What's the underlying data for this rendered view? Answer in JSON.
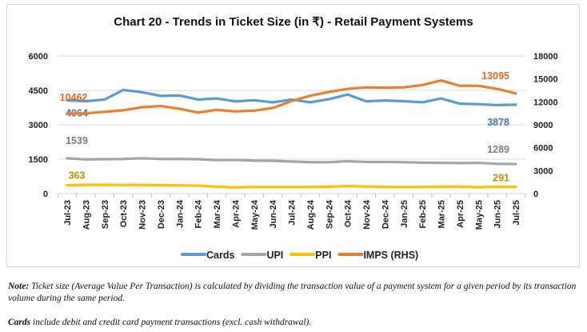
{
  "chart_data": {
    "type": "line",
    "title": "Chart 20 - Trends in Ticket Size (in ₹) - Retail Payment Systems",
    "categories": [
      "Jul-23",
      "Aug-23",
      "Sep-23",
      "Oct-23",
      "Nov-23",
      "Dec-23",
      "Jan-24",
      "Feb-24",
      "Mar-24",
      "Apr-24",
      "May-24",
      "Jun-24",
      "Jul-24",
      "Aug-24",
      "Sep-24",
      "Oct-24",
      "Nov-24",
      "Dec-24",
      "Jan-25",
      "Feb-25",
      "Mar-25",
      "Apr-25",
      "May-25",
      "Jun-25",
      "Jul-25"
    ],
    "y_left": {
      "range": [
        0,
        6000
      ],
      "ticks": [
        "0",
        "1500",
        "3000",
        "4500",
        "6000"
      ]
    },
    "y_right": {
      "range": [
        0,
        18000
      ],
      "ticks": [
        "0",
        "3000",
        "6000",
        "9000",
        "12000",
        "15000",
        "18000"
      ]
    },
    "grid": true,
    "legend": "bottom",
    "series": [
      {
        "name": "Cards",
        "axis": "left",
        "color": "#5b9bd5",
        "values": [
          4064,
          4030,
          4100,
          4520,
          4420,
          4260,
          4280,
          4100,
          4150,
          4020,
          4070,
          3980,
          4100,
          3980,
          4120,
          4320,
          4020,
          4060,
          4030,
          3980,
          4150,
          3920,
          3900,
          3860,
          3878
        ],
        "first_label": "4064",
        "last_label": "3878"
      },
      {
        "name": "UPI",
        "axis": "left",
        "color": "#a5a5a5",
        "values": [
          1539,
          1490,
          1500,
          1510,
          1540,
          1510,
          1510,
          1500,
          1460,
          1470,
          1440,
          1430,
          1400,
          1370,
          1370,
          1410,
          1380,
          1380,
          1370,
          1350,
          1340,
          1330,
          1340,
          1300,
          1289
        ],
        "first_label": "1539",
        "last_label": "1289"
      },
      {
        "name": "PPI",
        "axis": "left",
        "color": "#ffc000",
        "values": [
          363,
          380,
          380,
          375,
          375,
          365,
          360,
          345,
          300,
          270,
          290,
          290,
          290,
          290,
          300,
          330,
          310,
          290,
          290,
          290,
          300,
          300,
          280,
          300,
          291
        ],
        "first_label": "363",
        "last_label": "291"
      },
      {
        "name": "IMPS (RHS)",
        "axis": "right",
        "color": "#ed7d31",
        "values": [
          10462,
          10500,
          10700,
          10900,
          11300,
          11450,
          11100,
          10600,
          10950,
          10750,
          10850,
          11200,
          12100,
          12800,
          13300,
          13700,
          13900,
          13850,
          13900,
          14200,
          14800,
          14100,
          14100,
          13700,
          13095
        ],
        "first_label": "10462",
        "last_label": "13095"
      }
    ]
  },
  "notes": {
    "note_bold": "Note:",
    "note_text": " Ticket size (Average Value Per Transaction) is calculated by dividing the transaction value of a payment system for a given period by its transaction volume during the same period.",
    "cards_bold": "Cards",
    "cards_text": " include debit and credit card payment transactions (excl. cash withdrawal)."
  }
}
